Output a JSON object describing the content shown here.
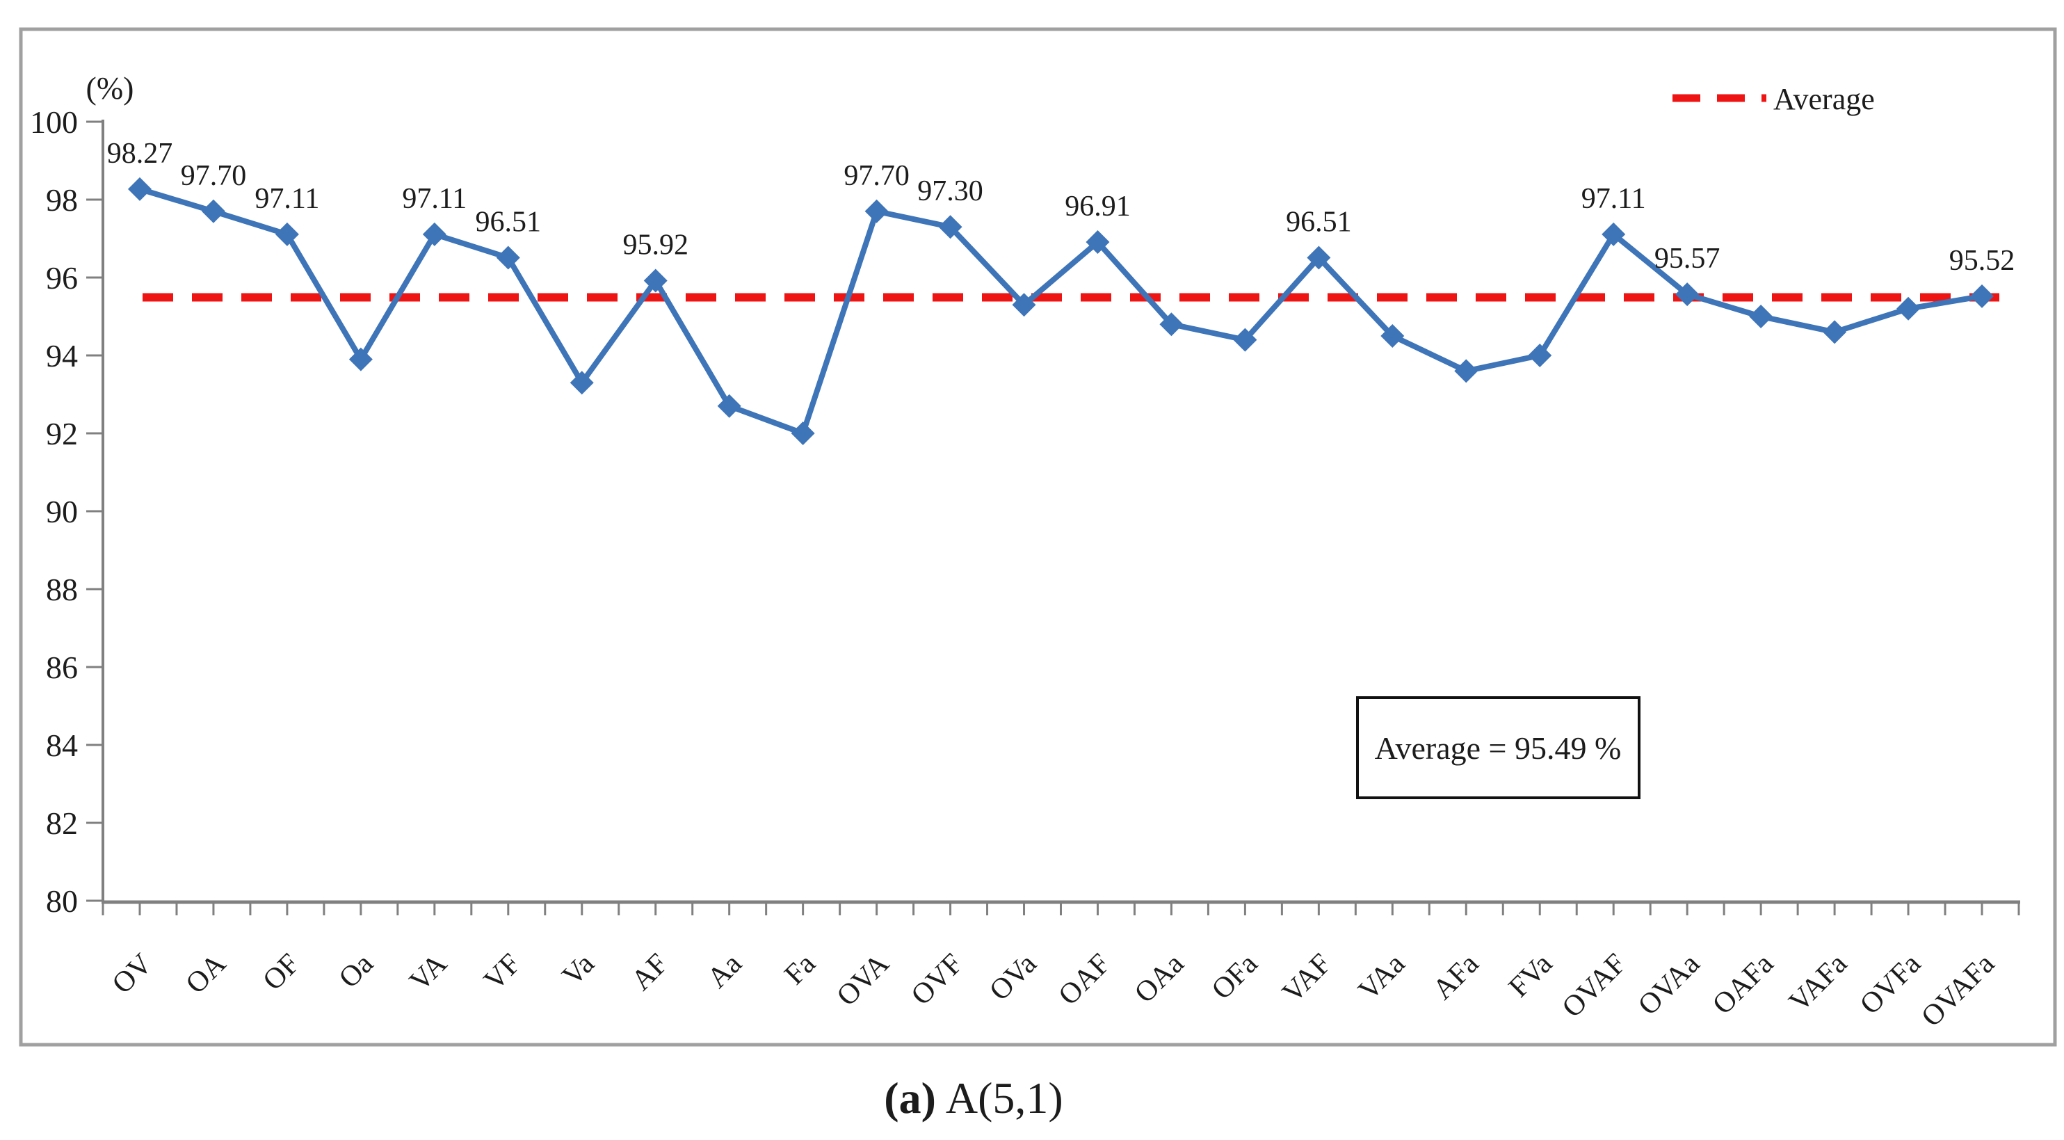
{
  "figure": {
    "unit_label": "(%)",
    "caption": {
      "prefix": "(a)",
      "title": "A(5,1)"
    }
  },
  "legend": {
    "label": "Average",
    "position": "top-right"
  },
  "annotation": {
    "label": "Average = 95.49 %"
  },
  "colors": {
    "line": "#3E74B8",
    "average_line": "#EE1414",
    "axis": "#808080",
    "border": "#A0A0A0",
    "text": "#1C1C1C"
  },
  "chart_data": {
    "type": "line",
    "title": "",
    "ylabel": "(%)",
    "xlabel": "",
    "grid": false,
    "legend_position": "top-right",
    "marker": "diamond",
    "line_style": "solid",
    "average_line_style": "dashed",
    "average": 95.49,
    "ylim": [
      80,
      100
    ],
    "ytick_step": 2,
    "categories": [
      "OV",
      "OA",
      "OF",
      "Oa",
      "VA",
      "VF",
      "Va",
      "AF",
      "Aa",
      "Fa",
      "OVA",
      "OVF",
      "OVa",
      "OAF",
      "OAa",
      "OFa",
      "VAF",
      "VAa",
      "AFa",
      "FVa",
      "OVAF",
      "OVAa",
      "OAFa",
      "VAFa",
      "OVFa",
      "OVAFa"
    ],
    "values": [
      98.27,
      97.7,
      97.11,
      93.9,
      97.11,
      96.51,
      93.3,
      95.92,
      92.7,
      92.0,
      97.7,
      97.3,
      95.3,
      96.91,
      94.8,
      94.4,
      96.51,
      94.5,
      93.6,
      94.0,
      97.11,
      95.57,
      95.0,
      94.6,
      95.2,
      95.52
    ],
    "point_labels": [
      "98.27",
      "97.70",
      "97.11",
      null,
      "97.11",
      "96.51",
      null,
      "95.92",
      null,
      null,
      "97.70",
      "97.30",
      null,
      "96.91",
      null,
      null,
      "96.51",
      null,
      null,
      null,
      "97.11",
      "95.57",
      null,
      null,
      null,
      "95.52"
    ]
  }
}
